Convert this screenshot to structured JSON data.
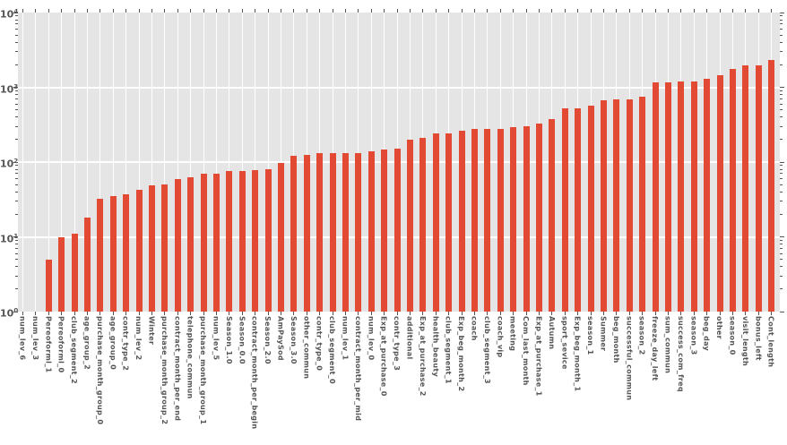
{
  "figure": {
    "background": "#FFFFFF",
    "plot_background": "#E5E5E5",
    "grid_color": "#FFFFFF",
    "tick_color": "#555555",
    "bar_color": "#E24A33"
  },
  "y_axis": {
    "base": "10",
    "exponents": [
      "0",
      "1",
      "2",
      "3",
      "4"
    ]
  },
  "chart_data": {
    "type": "bar",
    "title": "",
    "xlabel": "",
    "ylabel": "",
    "yscale": "log",
    "ylim": [
      1,
      10000
    ],
    "grid": true,
    "legend": null,
    "categories": [
      "num_lev_6",
      "num_lev_3",
      "Pereoforml_1",
      "Pereoforml_0",
      "club_segment_2",
      "age_group_2",
      "purchase_month_group_0",
      "age_group_0",
      "contr_type_2",
      "num_lev_2",
      "Winter",
      "purchase_month_group_2",
      "contract_month_per_end",
      "telephone_commun",
      "purchase_month_group_1",
      "num_lev_5",
      "Season_1.0",
      "Season_0.0",
      "contract_month_per_begin",
      "Season_2.0",
      "AmPaySod",
      "Season_3.0",
      "other_commun",
      "contr_type_0",
      "club_segment_0",
      "num_lev_1",
      "contract_month_per_mid",
      "num_lev_0",
      "Exp_at_purchase_0",
      "contr_type_3",
      "additional",
      "Exp_at_purchase_2",
      "health_beauty",
      "club_segment_1",
      "Exp_beg_month_2",
      "coach",
      "club_segment_3",
      "coach_vip",
      "meeting",
      "Com_last_month",
      "Exp_at_purchase_1",
      "Autumn",
      "sport_sevice",
      "Exp_beg_month_1",
      "season_1",
      "Summer",
      "beg_month",
      "successful_commun",
      "season_2",
      "freeze_day_left",
      "sum_commun",
      "success_com_freq",
      "season_3",
      "beg_day",
      "other",
      "season_0",
      "visit_length",
      "bonus_left",
      "Cont_length"
    ],
    "values": [
      1,
      1,
      5,
      10,
      11,
      18,
      32,
      35,
      37,
      42,
      49,
      50,
      59,
      63,
      69,
      70,
      76,
      76,
      77,
      80,
      98,
      120,
      123,
      130,
      131,
      132,
      133,
      140,
      147,
      152,
      200,
      210,
      243,
      245,
      262,
      274,
      275,
      280,
      292,
      300,
      330,
      375,
      520,
      525,
      570,
      677,
      680,
      695,
      740,
      1150,
      1160,
      1180,
      1190,
      1290,
      1460,
      1760,
      1980,
      1990,
      2300
    ]
  }
}
